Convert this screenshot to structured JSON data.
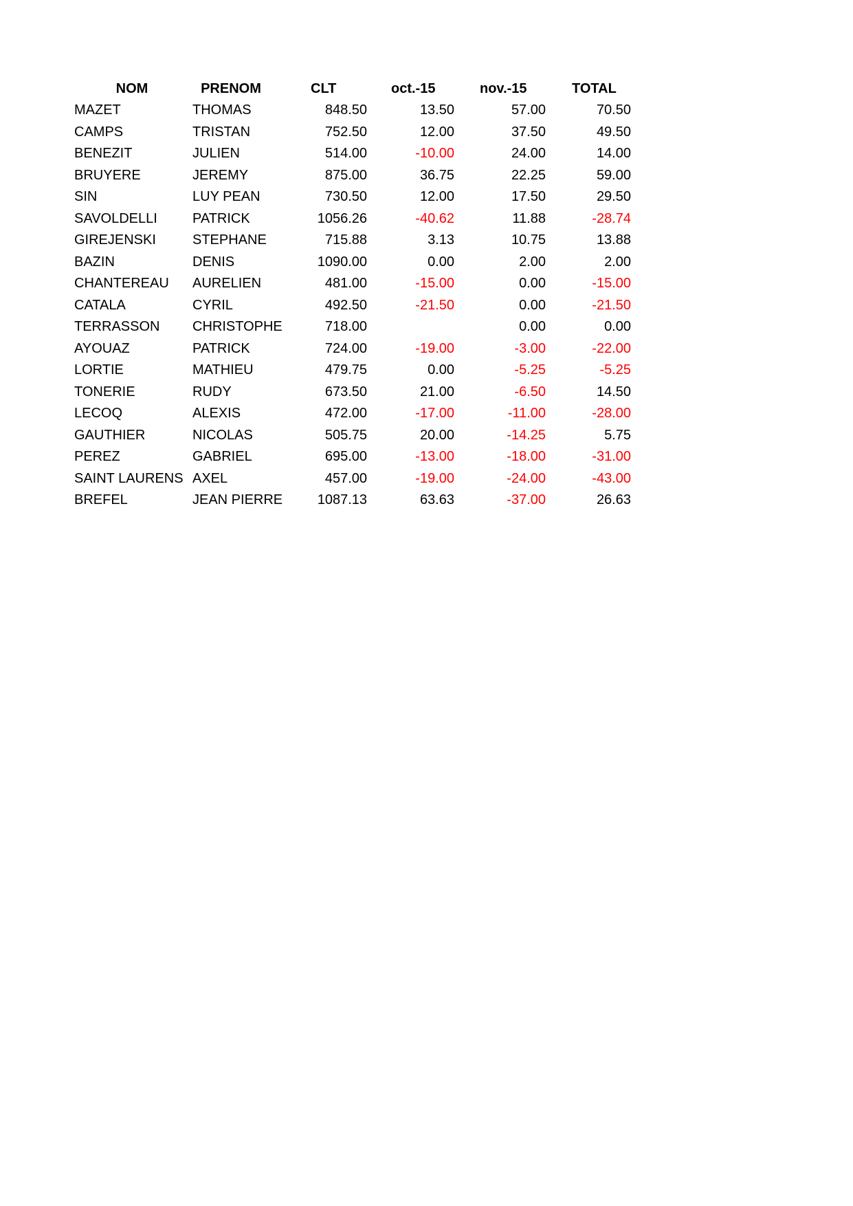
{
  "headers": [
    "NOM",
    "PRENOM",
    "CLT",
    "oct.-15",
    "nov.-15",
    "TOTAL"
  ],
  "negative_color": "#ff0000",
  "rows": [
    [
      "MAZET",
      "THOMAS",
      "848.50",
      "13.50",
      "57.00",
      "70.50"
    ],
    [
      "CAMPS",
      "TRISTAN",
      "752.50",
      "12.00",
      "37.50",
      "49.50"
    ],
    [
      "BENEZIT",
      "JULIEN",
      "514.00",
      "-10.00",
      "24.00",
      "14.00"
    ],
    [
      "BRUYERE",
      "JEREMY",
      "875.00",
      "36.75",
      "22.25",
      "59.00"
    ],
    [
      "SIN",
      "LUY PEAN",
      "730.50",
      "12.00",
      "17.50",
      "29.50"
    ],
    [
      "SAVOLDELLI",
      "PATRICK",
      "1056.26",
      "-40.62",
      "11.88",
      "-28.74"
    ],
    [
      "GIREJENSKI",
      "STEPHANE",
      "715.88",
      "3.13",
      "10.75",
      "13.88"
    ],
    [
      "BAZIN",
      "DENIS",
      "1090.00",
      "0.00",
      "2.00",
      "2.00"
    ],
    [
      "CHANTEREAU",
      "AURELIEN",
      "481.00",
      "-15.00",
      "0.00",
      "-15.00"
    ],
    [
      "CATALA",
      "CYRIL",
      "492.50",
      "-21.50",
      "0.00",
      "-21.50"
    ],
    [
      "TERRASSON",
      "CHRISTOPHE",
      "718.00",
      "",
      "0.00",
      "0.00"
    ],
    [
      "AYOUAZ",
      "PATRICK",
      "724.00",
      "-19.00",
      "-3.00",
      "-22.00"
    ],
    [
      "LORTIE",
      "MATHIEU",
      "479.75",
      "0.00",
      "-5.25",
      "-5.25"
    ],
    [
      "TONERIE",
      "RUDY",
      "673.50",
      "21.00",
      "-6.50",
      "14.50"
    ],
    [
      "LECOQ",
      "ALEXIS",
      "472.00",
      "-17.00",
      "-11.00",
      "-28.00"
    ],
    [
      "GAUTHIER",
      "NICOLAS",
      "505.75",
      "20.00",
      "-14.25",
      "5.75"
    ],
    [
      "PEREZ",
      "GABRIEL",
      "695.00",
      "-13.00",
      "-18.00",
      "-31.00"
    ],
    [
      "SAINT LAURENS",
      "AXEL",
      "457.00",
      "-19.00",
      "-24.00",
      "-43.00"
    ],
    [
      "BREFEL",
      "JEAN PIERRE",
      "1087.13",
      "63.63",
      "-37.00",
      "26.63"
    ]
  ]
}
